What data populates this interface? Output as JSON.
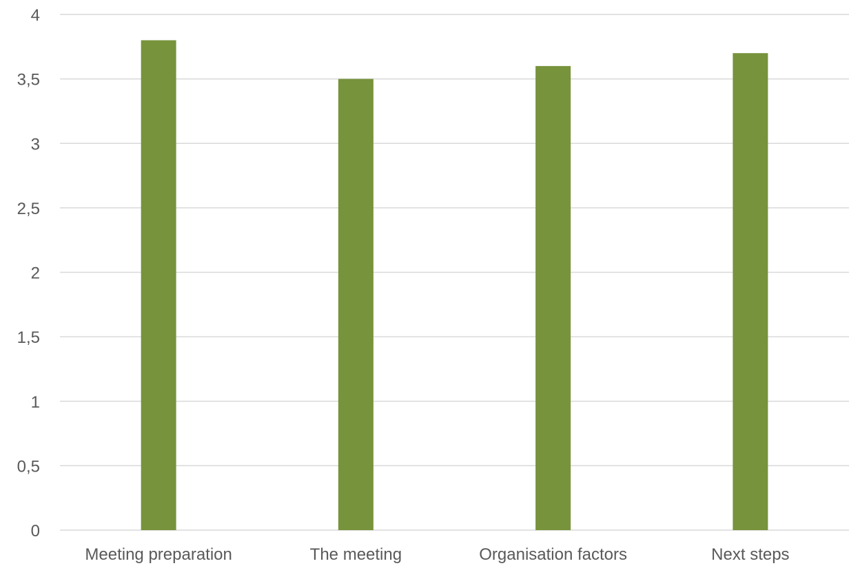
{
  "chart_data": {
    "type": "bar",
    "categories": [
      "Meeting preparation",
      "The meeting",
      "Organisation factors",
      "Next steps"
    ],
    "values": [
      3.8,
      3.5,
      3.6,
      3.7
    ],
    "ylim": [
      0,
      4
    ],
    "yticks": [
      0,
      0.5,
      1,
      1.5,
      2,
      2.5,
      3,
      3.5,
      4
    ],
    "ytick_labels": [
      "0",
      "0,5",
      "1",
      "1,5",
      "2",
      "2,5",
      "3",
      "3,5",
      "4"
    ],
    "grid": true,
    "legend": "none",
    "bar_color": "#77933c",
    "grid_color": "#d9d9d9",
    "text_color": "#595959"
  }
}
